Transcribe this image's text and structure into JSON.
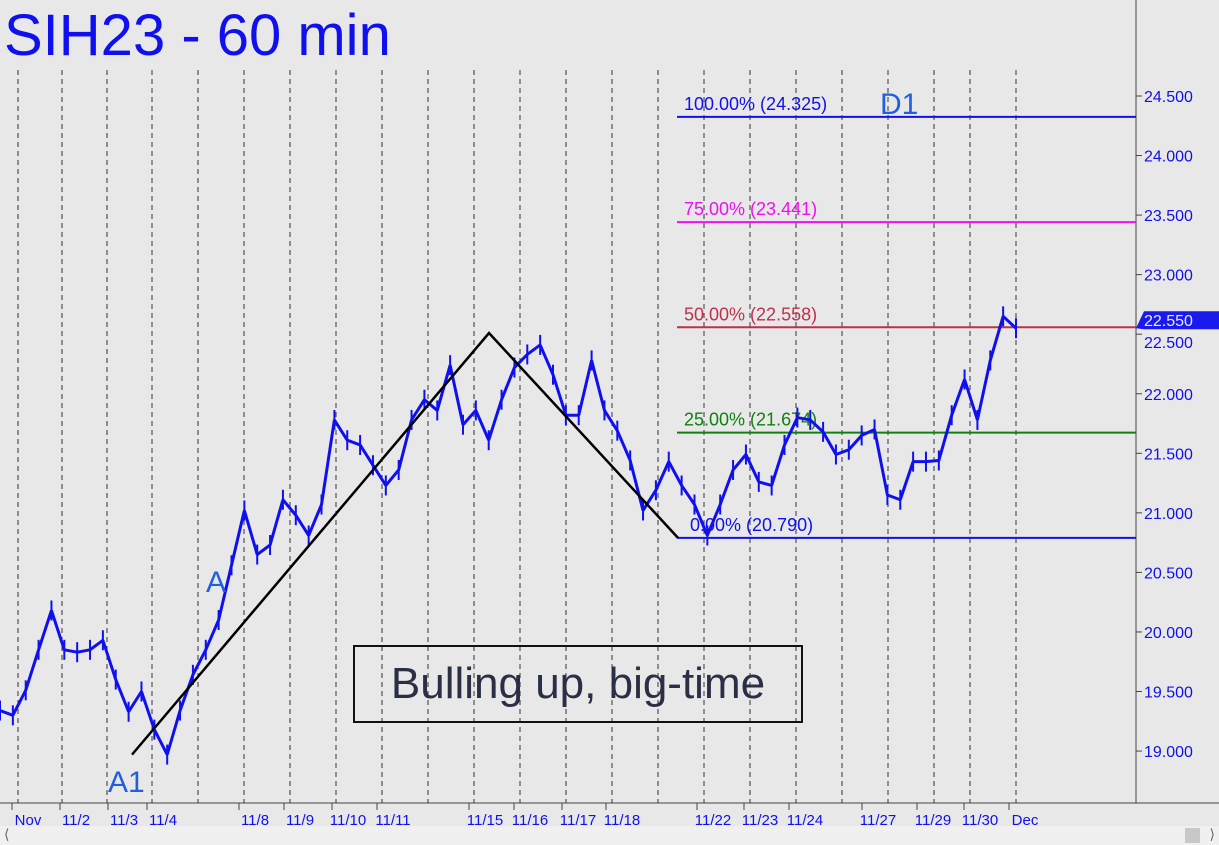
{
  "title": "SIH23 - 60 min",
  "annotation": "Bulling up, big-time",
  "colors": {
    "price": "#1010ee",
    "background": "#e8e8e8",
    "fib100": "#1010ee",
    "fib75": "#ee10ee",
    "fib50": "#c0304a",
    "fib25": "#108010",
    "fib0": "#1010ee",
    "zigzag": "#000000",
    "axis_text": "#1010ee",
    "wave_labels": "#2060e0"
  },
  "chart_data": {
    "type": "line",
    "title": "SIH23 - 60 min",
    "ylim": [
      18.6,
      25.2
    ],
    "yticks": [
      "19.000",
      "19.500",
      "20.000",
      "20.500",
      "21.000",
      "21.500",
      "22.000",
      "22.500",
      "23.000",
      "23.500",
      "24.000",
      "24.500"
    ],
    "ytick_values": [
      19,
      19.5,
      20,
      20.5,
      21,
      21.5,
      22,
      22.5,
      23,
      23.5,
      24,
      24.5
    ],
    "xticks": [
      "Nov",
      "11/2",
      "11/3",
      "11/4",
      "11/8",
      "11/9",
      "11/10",
      "11/11",
      "11/15",
      "11/16",
      "11/17",
      "11/18",
      "11/22",
      "11/23",
      "11/24",
      "11/27",
      "11/29",
      "11/30",
      "Dec"
    ],
    "grid": "vertical dashed day separators",
    "last_price": "22.550",
    "last_price_value": 22.55,
    "series": [
      {
        "values": [
          19.34,
          19.3,
          19.51,
          19.85,
          20.18,
          19.85,
          19.83,
          19.85,
          19.93,
          19.6,
          19.33,
          19.5,
          19.18,
          18.97,
          19.34,
          19.64,
          19.85,
          20.1,
          20.56,
          21.02,
          20.65,
          20.73,
          21.11,
          20.98,
          20.81,
          21.07,
          21.78,
          21.61,
          21.57,
          21.4,
          21.23,
          21.36,
          21.78,
          21.95,
          21.86,
          22.24,
          21.74,
          21.86,
          21.61,
          21.95,
          22.22,
          22.33,
          22.41,
          22.16,
          21.82,
          21.82,
          22.28,
          21.86,
          21.69,
          21.44,
          21.02,
          21.19,
          21.43,
          21.23,
          21.07,
          20.81,
          21.07,
          21.36,
          21.49,
          21.26,
          21.23,
          21.57,
          21.8,
          21.78,
          21.68,
          21.49,
          21.53,
          21.65,
          21.7,
          21.15,
          21.11,
          21.43,
          21.43,
          21.44,
          21.82,
          22.12,
          21.78,
          22.28,
          22.65,
          22.55
        ]
      }
    ],
    "fib_levels": [
      {
        "label": "100.00% (24.325)",
        "value": 24.325,
        "color": "#1010ee"
      },
      {
        "label": "75.00% (23.441)",
        "value": 23.441,
        "color": "#ee10ee"
      },
      {
        "label": "50.00% (22.558)",
        "value": 22.558,
        "color": "#c0304a"
      },
      {
        "label": "25.00% (21.674)",
        "value": 21.674,
        "color": "#108010"
      },
      {
        "label": "0.00% (20.790)",
        "value": 20.79,
        "color": "#1010ee"
      }
    ],
    "zigzag": [
      18.97,
      22.51,
      20.79
    ],
    "wave_labels": [
      "A1",
      "A",
      "D1"
    ]
  }
}
